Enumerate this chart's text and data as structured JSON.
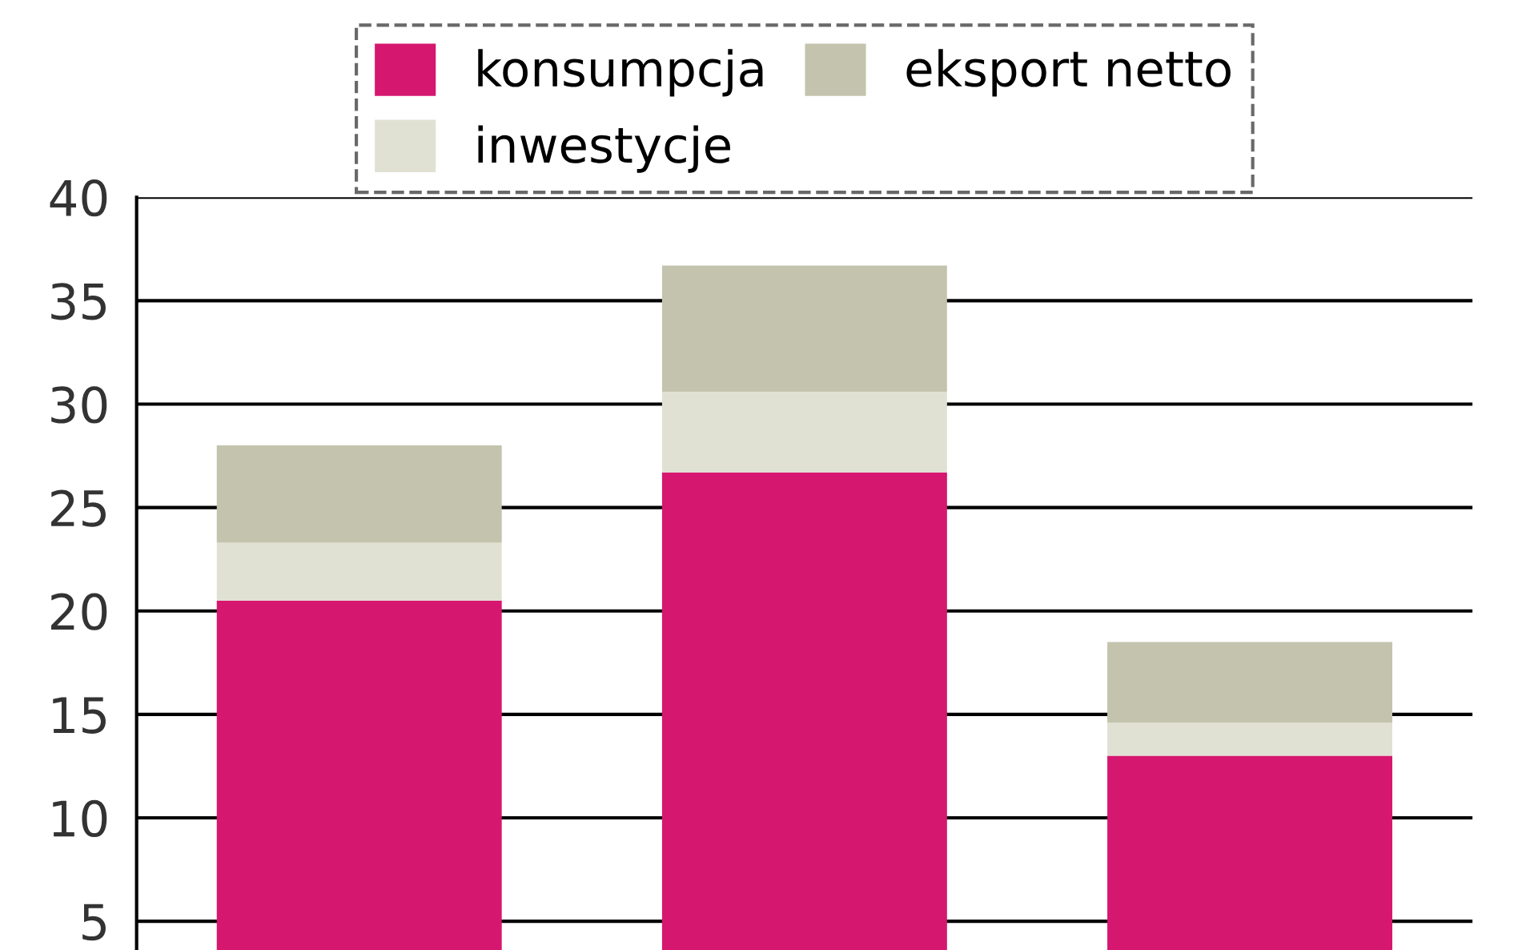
{
  "chart_data": {
    "type": "bar",
    "stacked": true,
    "categories": [
      null,
      null,
      null
    ],
    "series": [
      {
        "name": "konsumpcja",
        "color": "#d6176f",
        "values": [
          20.5,
          26.7,
          13.0
        ]
      },
      {
        "name": "inwestycje",
        "color": "#e1e1d3",
        "values": [
          2.8,
          3.9,
          1.6
        ]
      },
      {
        "name": "eksport netto",
        "color": "#c4c4ae",
        "values": [
          4.7,
          6.1,
          3.9
        ]
      }
    ],
    "ylim": [
      0,
      40
    ],
    "yticks": [
      5,
      10,
      15,
      20,
      25,
      30,
      35,
      40
    ],
    "grid": "y",
    "legend": "top",
    "tick_labels": "y"
  }
}
